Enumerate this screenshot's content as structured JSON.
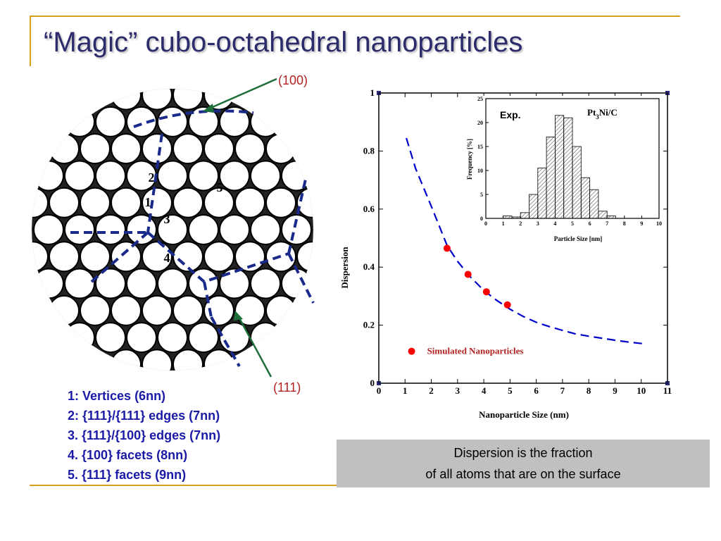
{
  "slide": {
    "title": "“Magic” cubo-octahedral nanoparticles",
    "accent_color": "#d4a017",
    "title_color": "#2c2c6c"
  },
  "particle": {
    "labels": [
      "1",
      "2",
      "3",
      "4",
      "5"
    ],
    "facet_100": "(100)",
    "facet_111": "(111)"
  },
  "legend": {
    "items": [
      "1: Vertices (6nn)",
      "2: {111}/{111} edges (7nn)",
      "3. {111}/{100} edges (7nn)",
      "4. {100} facets (8nn)",
      "5. {111} facets (9nn)"
    ],
    "color": "#1a1aa6"
  },
  "caption": {
    "line1": "Dispersion is the fraction",
    "line2": "of all atoms that are on the surface"
  },
  "chart_data": [
    {
      "type": "scatter",
      "xlabel": "Nanoparticle Size (nm)",
      "ylabel": "Dispersion",
      "xlim": [
        0,
        11
      ],
      "ylim": [
        0,
        1
      ],
      "xticks": [
        "0",
        "1",
        "2",
        "3",
        "4",
        "5",
        "6",
        "7",
        "8",
        "9",
        "10",
        "11"
      ],
      "yticks": [
        "0",
        "0.2",
        "0.4",
        "0.6",
        "0.8",
        "1"
      ],
      "series": [
        {
          "name": "Simulated Nanoparticles",
          "color": "#ff0000",
          "points": [
            [
              2.6,
              0.465
            ],
            [
              3.4,
              0.375
            ],
            [
              4.1,
              0.315
            ],
            [
              4.9,
              0.27
            ]
          ]
        }
      ],
      "fit_curve": {
        "color": "#0000cc",
        "style": "dashed",
        "points": [
          [
            1.05,
            0.845
          ],
          [
            1.4,
            0.74
          ],
          [
            2.0,
            0.61
          ],
          [
            2.6,
            0.475
          ],
          [
            3.0,
            0.42
          ],
          [
            3.5,
            0.365
          ],
          [
            4.0,
            0.32
          ],
          [
            4.5,
            0.285
          ],
          [
            5.0,
            0.255
          ],
          [
            5.5,
            0.23
          ],
          [
            6.0,
            0.21
          ],
          [
            6.5,
            0.195
          ],
          [
            7.0,
            0.182
          ],
          [
            7.5,
            0.17
          ],
          [
            8.0,
            0.162
          ],
          [
            8.5,
            0.155
          ],
          [
            9.0,
            0.148
          ],
          [
            9.5,
            0.142
          ],
          [
            10.2,
            0.135
          ]
        ]
      },
      "legend_placement": "bottom-left"
    },
    {
      "type": "bar",
      "title_left": "Exp.",
      "title_right": "Pt3Ni/C",
      "xlabel": "Particle Size [nm]",
      "ylabel": "Frequency [%]",
      "xlim": [
        0,
        10
      ],
      "ylim": [
        0,
        25
      ],
      "xticks": [
        "0",
        "1",
        "2",
        "3",
        "4",
        "5",
        "6",
        "7",
        "8",
        "9",
        "10"
      ],
      "yticks": [
        "0",
        "5",
        "10",
        "15",
        "20",
        "25"
      ],
      "bin_width": 0.5,
      "bins": [
        {
          "x": 1.0,
          "value": 0.5
        },
        {
          "x": 1.5,
          "value": 0.3
        },
        {
          "x": 2.0,
          "value": 1.2
        },
        {
          "x": 2.5,
          "value": 5.0
        },
        {
          "x": 3.0,
          "value": 10.5
        },
        {
          "x": 3.5,
          "value": 17.0
        },
        {
          "x": 4.0,
          "value": 21.5
        },
        {
          "x": 4.5,
          "value": 21.0
        },
        {
          "x": 5.0,
          "value": 15.0
        },
        {
          "x": 5.5,
          "value": 8.5
        },
        {
          "x": 6.0,
          "value": 6.0
        },
        {
          "x": 6.5,
          "value": 1.5
        },
        {
          "x": 7.0,
          "value": 0.5
        }
      ]
    }
  ]
}
